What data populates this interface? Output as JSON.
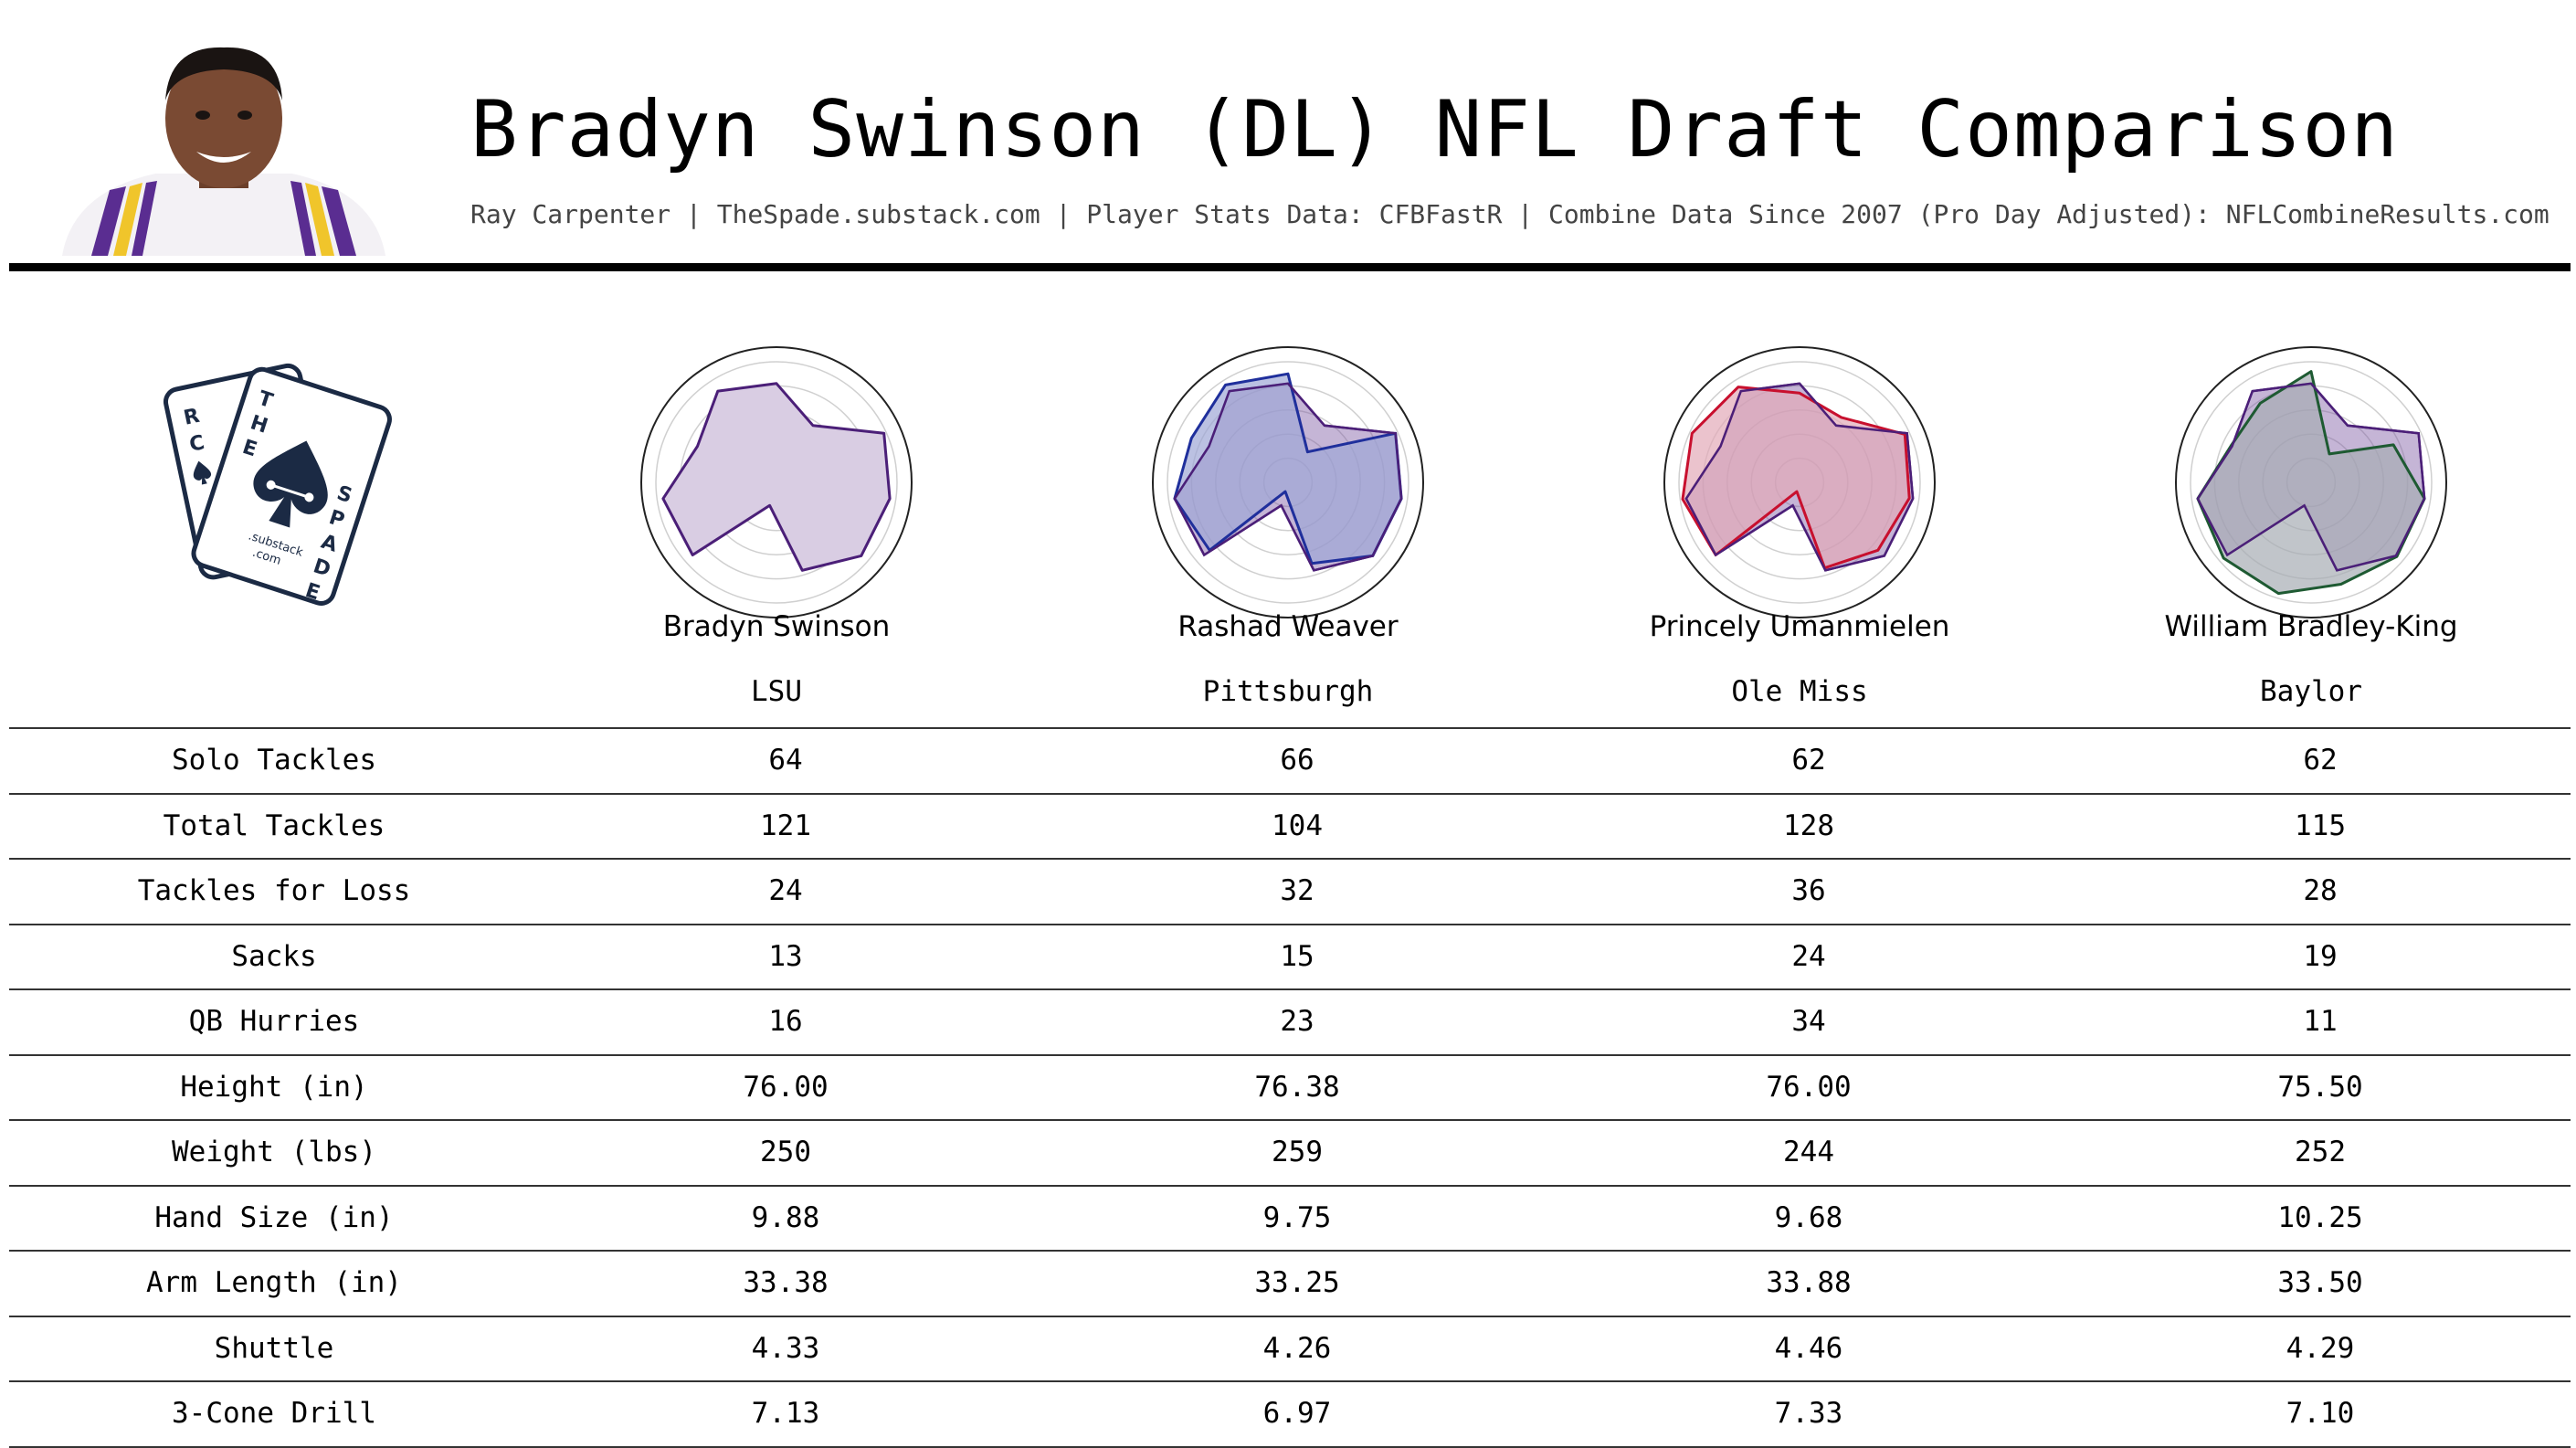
{
  "header": {
    "title": "Bradyn Swinson (DL) NFL Draft Comparison",
    "subtitle": "Ray Carpenter | TheSpade.substack.com | Player Stats Data: CFBFastR | Combine Data Since 2007 (Pro Day Adjusted): NFLCombineResults.com"
  },
  "logo": {
    "text_letters": [
      "R",
      "C",
      "E",
      "T",
      "H",
      "E",
      "S",
      "P",
      "A",
      "D",
      "E"
    ],
    "line1": ".substack",
    "line2": ".com",
    "color": "#1b2a44"
  },
  "colors": {
    "swinson": "#5b2a86",
    "weaver": "#1f2f9c",
    "umanmielen": "#c8102e",
    "bradley_king": "#1e5a32"
  },
  "players": [
    {
      "name": "Bradyn Swinson",
      "school": "LSU",
      "fill": "#d9cde3",
      "stroke": "#4b1f78"
    },
    {
      "name": "Rashad Weaver",
      "school": "Pittsburgh",
      "fill": "#9ea7d6",
      "stroke": "#1f2f9c"
    },
    {
      "name": "Princely Umanmielen",
      "school": "Ole Miss",
      "fill": "#e3a9b8",
      "stroke": "#c8102e"
    },
    {
      "name": "William Bradley-King",
      "school": "Baylor",
      "fill": "#a7adb3",
      "stroke": "#1e5a32"
    }
  ],
  "chart_data": {
    "type": "table",
    "row_labels": [
      "Solo Tackles",
      "Total Tackles",
      "Tackles for Loss",
      "Sacks",
      "QB Hurries",
      "Height (in)",
      "Weight (lbs)",
      "Hand Size (in)",
      "Arm Length (in)",
      "Shuttle",
      "3-Cone Drill"
    ],
    "columns": [
      "Bradyn Swinson",
      "Rashad Weaver",
      "Princely Umanmielen",
      "William Bradley-King"
    ],
    "rows": [
      [
        "64",
        "66",
        "62",
        "62"
      ],
      [
        "121",
        "104",
        "128",
        "115"
      ],
      [
        "24",
        "32",
        "36",
        "28"
      ],
      [
        "13",
        "15",
        "24",
        "19"
      ],
      [
        "16",
        "23",
        "34",
        "11"
      ],
      [
        "76.00",
        "76.38",
        "76.00",
        "75.50"
      ],
      [
        "250",
        "259",
        "244",
        "252"
      ],
      [
        "9.88",
        "9.75",
        "9.68",
        "10.25"
      ],
      [
        "33.38",
        "33.25",
        "33.88",
        "33.50"
      ],
      [
        "4.33",
        "4.26",
        "4.46",
        "4.29"
      ],
      [
        "7.13",
        "6.97",
        "7.33",
        "7.10"
      ]
    ],
    "radar": {
      "type": "radar",
      "axes_count": 11,
      "value_range": [
        0,
        1
      ],
      "grid_rings": 5,
      "reference_series": "Bradyn Swinson",
      "series": [
        {
          "name": "Bradyn Swinson",
          "values": [
            0.82,
            0.56,
            0.98,
            0.95,
            0.93,
            0.76,
            0.2,
            0.92,
            0.95,
            0.72,
            0.9
          ]
        },
        {
          "name": "Rashad Weaver",
          "values": [
            0.9,
            0.3,
            0.98,
            0.95,
            0.93,
            0.7,
            0.08,
            0.86,
            0.95,
            0.88,
            0.96
          ]
        },
        {
          "name": "Princely Umanmielen",
          "values": [
            0.74,
            0.64,
            0.96,
            0.92,
            0.86,
            0.74,
            0.08,
            0.92,
            0.98,
            0.98,
            0.94
          ]
        },
        {
          "name": "William Bradley-King",
          "values": [
            0.92,
            0.28,
            0.75,
            0.95,
            0.94,
            0.88,
            0.96,
            0.96,
            0.95,
            0.73,
            0.78
          ]
        }
      ]
    }
  }
}
